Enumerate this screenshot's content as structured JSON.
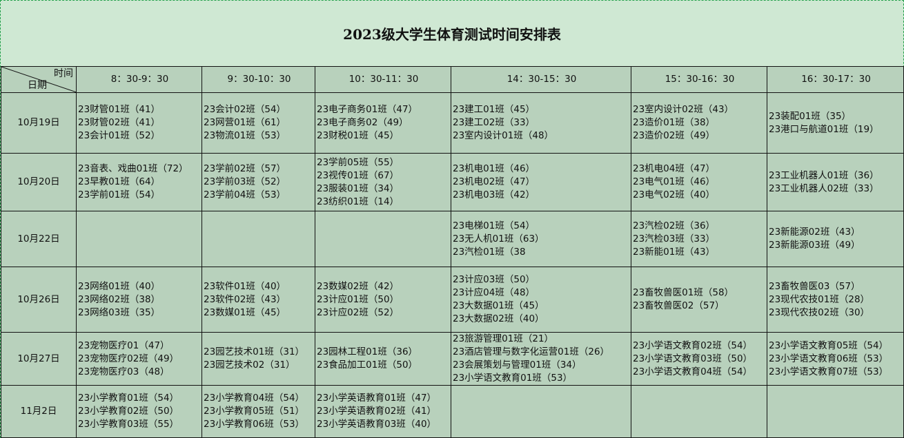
{
  "title": "2023级大学生体育测试时间安排表",
  "corner": {
    "time_label": "时间",
    "date_label": "日期"
  },
  "columns": [
    "8：30-9：30",
    "9：30-10：30",
    "10：30-11：30",
    "14：30-15：30",
    "15：30-16：30",
    "16：30-17：30"
  ],
  "rows": [
    {
      "date": "10月19日",
      "cells": [
        [
          "23财管01班（41）",
          "23财管02班（41）",
          "23会计01班（52）"
        ],
        [
          "23会计02班（54）",
          "23网营01班（61）",
          "23物流01班（53）"
        ],
        [
          "23电子商务01班（47）",
          "23电子商务02（49）",
          "23财税01班（45）"
        ],
        [
          "23建工01班（45）",
          "23建工02班（33）",
          "23室内设计01班（48）"
        ],
        [
          "23室内设计02班（43）",
          "23造价01班（38）",
          "23造价02班（49）"
        ],
        [
          "23装配01班（35）",
          "23港口与航道01班（19）"
        ]
      ]
    },
    {
      "date": "10月20日",
      "cells": [
        [
          "23音表、戏曲01班（72）",
          "23早教01班（64）",
          "23学前01班（54）"
        ],
        [
          "23学前02班（57）",
          "23学前03班（52）",
          "23学前04班（53）"
        ],
        [
          "23学前05班（55）",
          "23视传01班（67）",
          "23服装01班（34）",
          "23纺织01班（14）"
        ],
        [
          "23机电01班（46）",
          "23机电02班（47）",
          "23机电03班（42）"
        ],
        [
          "23机电04班（47）",
          "23电气01班（46）",
          "23电气02班（40）"
        ],
        [
          "23工业机器人01班（36）",
          "23工业机器人02班（33）"
        ]
      ]
    },
    {
      "date": "10月22日",
      "cells": [
        [],
        [],
        [],
        [
          "23电梯01班（54）",
          "23无人机01班（63）",
          "23汽检01班（38"
        ],
        [
          "23汽检02班（36）",
          "23汽检03班（33）",
          "23新能01班（43）"
        ],
        [
          "23新能源02班（43）",
          "23新能源03班（49）"
        ]
      ]
    },
    {
      "date": "10月26日",
      "cells": [
        [
          "23网络01班（40）",
          "23网络02班（38）",
          "23网络03班（35）"
        ],
        [
          "23软件01班（40）",
          "23软件02班（43）",
          "23数媒01班（45）"
        ],
        [
          "23数媒02班（42）",
          "23计应01班（50）",
          "23计应02班（52）"
        ],
        [
          "23计应03班（50）",
          "23计应04班（48）",
          "23大数据01班（45）",
          "23大数据02班（40）"
        ],
        [
          "23畜牧兽医01班（58）",
          "23畜牧兽医02（57）"
        ],
        [
          "23畜牧兽医03（57）",
          "23现代农技01班（28）",
          "23现代农技02班（30）"
        ]
      ]
    },
    {
      "date": "10月27日",
      "cells": [
        [
          "23宠物医疗01（47）",
          "23宠物医疗02班（49）",
          "23宠物医疗03（48）"
        ],
        [
          "23园艺技术01班（31）",
          "23园艺技术02（31）"
        ],
        [
          "23园林工程01班（36）",
          "23食品加工01班（50）"
        ],
        [
          "23旅游管理01班（21）",
          "23酒店管理与数字化运营01班（26）",
          "23会展策划与管理01班（34）",
          "23小学语文教育01班（53）"
        ],
        [
          "23小学语文教育02班（54）",
          "23小学语文教育03班（50）",
          "23小学语文教育04班（54）"
        ],
        [
          "23小学语文教育05班（54）",
          "23小学语文教育06班（53）",
          "23小学语文教育07班（53）"
        ]
      ]
    },
    {
      "date": "11月2日",
      "cells": [
        [
          "23小学教育01班（54）",
          "23小学教育02班（50）",
          "23小学教育03班（55）"
        ],
        [
          "23小学教育04班（54）",
          "23小学教育05班（51）",
          "23小学教育06班（53）"
        ],
        [
          "23小学英语教育01班（47）",
          "23小学英语教育02班（41）",
          "23小学英语教育03班（40）"
        ],
        [],
        [],
        []
      ]
    }
  ]
}
